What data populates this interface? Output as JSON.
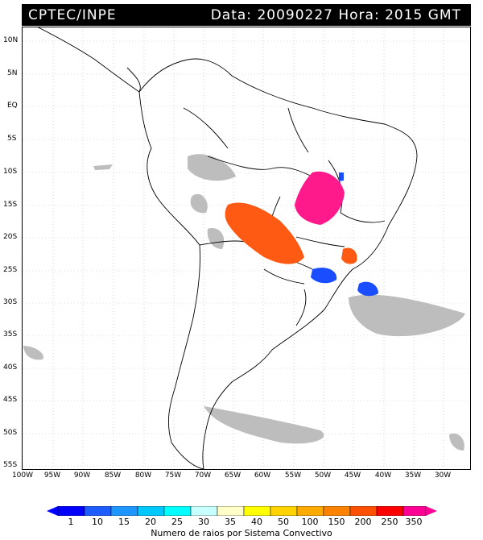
{
  "header": {
    "source": "CPTEC/INPE",
    "datetime": "Data: 20090227 Hora: 2015 GMT"
  },
  "axes": {
    "lat_labels": [
      "10N",
      "5N",
      "EQ",
      "5S",
      "10S",
      "15S",
      "20S",
      "25S",
      "30S",
      "35S",
      "40S",
      "45S",
      "50S",
      "55S"
    ],
    "lon_labels": [
      "100W",
      "95W",
      "90W",
      "85W",
      "80W",
      "75W",
      "70W",
      "65W",
      "60W",
      "55W",
      "50W",
      "45W",
      "40W",
      "35W",
      "30W"
    ]
  },
  "legend": {
    "values": [
      "1",
      "10",
      "15",
      "20",
      "25",
      "30",
      "35",
      "40",
      "50",
      "100",
      "150",
      "200",
      "250",
      "350"
    ],
    "colors": [
      "#0000ff",
      "#1e5cff",
      "#1e96ff",
      "#00c8ff",
      "#00ffff",
      "#c8ffff",
      "#ffffc8",
      "#ffff00",
      "#ffd200",
      "#ffaa00",
      "#ff8200",
      "#ff5000",
      "#ff0000",
      "#ff0096"
    ],
    "caption": "Numero de raios por Sistema Convectivo"
  },
  "colors": {
    "cloud": "#bdbdbd",
    "land_outline": "#000000"
  }
}
